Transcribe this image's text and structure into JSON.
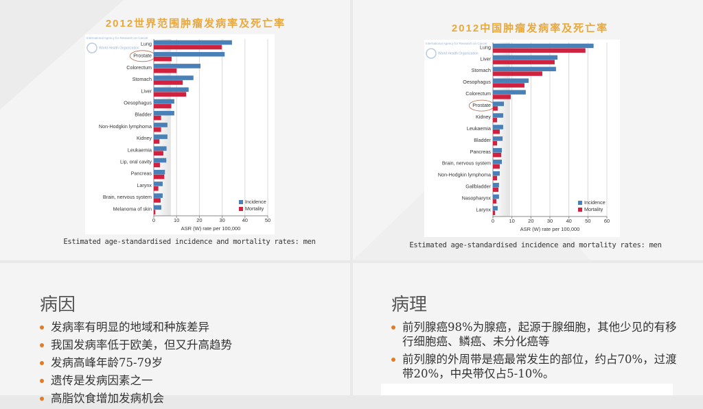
{
  "chart_data": [
    {
      "type": "hbar",
      "title": "2012世界范围肿瘤发病率及死亡率",
      "caption": "Estimated age-standardised incidence and mortality rates: men",
      "logo": [
        "International Agency for Research on Cancer",
        "World Health Organization"
      ],
      "xlabel": "ASR (W) rate per 100,000",
      "categories": [
        "Lung",
        "Prostate",
        "Colorectum",
        "Stomach",
        "Liver",
        "Oesophagus",
        "Bladder",
        "Non-Hodgkin lymphoma",
        "Kidney",
        "Leukaemia",
        "Lip, oral cavity",
        "Pancreas",
        "Larynx",
        "Brain, nervous system",
        "Melanoma of skin"
      ],
      "series": [
        {
          "name": "Incidence",
          "color": "#4a80b8",
          "values": [
            34.3,
            31.1,
            20.5,
            17.4,
            15.3,
            9.0,
            9.0,
            6.0,
            6.0,
            5.6,
            5.5,
            4.9,
            3.9,
            3.9,
            3.3
          ]
        },
        {
          "name": "Mortality",
          "color": "#d0213f",
          "values": [
            29.8,
            7.8,
            10.0,
            12.7,
            14.2,
            7.7,
            3.2,
            3.2,
            2.5,
            4.2,
            2.7,
            4.6,
            2.0,
            3.0,
            0.7
          ]
        }
      ],
      "xlim": [
        0,
        50
      ],
      "xticks": [
        0,
        10,
        20,
        30,
        40,
        50
      ],
      "grid": true,
      "legend": "lower right",
      "circled": "Prostate"
    },
    {
      "type": "hbar",
      "title": "2012中国肿瘤发病率及死亡率",
      "caption": "Estimated age-standardised incidence and mortality rates: men",
      "logo": [
        "International Agency for Research on Cancer",
        "World Health Organization"
      ],
      "xlabel": "ASR (W) rate per 100,000",
      "categories": [
        "Lung",
        "Liver",
        "Stomach",
        "Oesophagus",
        "Colorectum",
        "Prostate",
        "Kidney",
        "Leukaemia",
        "Bladder",
        "Pancreas",
        "Brain, nervous system",
        "Non-Hodgkin lymphoma",
        "Gallbladder",
        "Nasopharynx",
        "Larynx"
      ],
      "series": [
        {
          "name": "Incidence",
          "color": "#4a80b8",
          "values": [
            53.0,
            34.0,
            33.2,
            18.8,
            17.3,
            5.8,
            5.4,
            5.4,
            5.1,
            4.7,
            4.7,
            3.6,
            3.2,
            3.2,
            2.5
          ]
        },
        {
          "name": "Mortality",
          "color": "#d0213f",
          "values": [
            48.7,
            32.5,
            26.0,
            16.6,
            9.4,
            2.5,
            2.2,
            3.6,
            2.2,
            4.4,
            3.6,
            2.2,
            2.9,
            1.8,
            1.1
          ]
        }
      ],
      "xlim": [
        0,
        60
      ],
      "xticks": [
        0,
        10,
        20,
        30,
        40,
        50,
        60
      ],
      "grid": true,
      "legend": "lower right",
      "circled": "Prostate"
    }
  ],
  "slides": [
    {
      "heading": "病因",
      "bullets": [
        "发病率有明显的地域和种族差异",
        "我国发病率低于欧美，但又升高趋势",
        "发病高峰年龄75-79岁",
        "遗传是发病因素之一",
        "高脂饮食增加发病机会"
      ]
    },
    {
      "heading": "病理",
      "bullets": [
        "前列腺癌98%为腺癌，起源于腺细胞，其他少见的有移行细胞癌、鳞癌、未分化癌等",
        "前列腺的外周带是癌最常发生的部位，约占70%，过渡带20%，中央带仅占5-10%。"
      ]
    }
  ]
}
